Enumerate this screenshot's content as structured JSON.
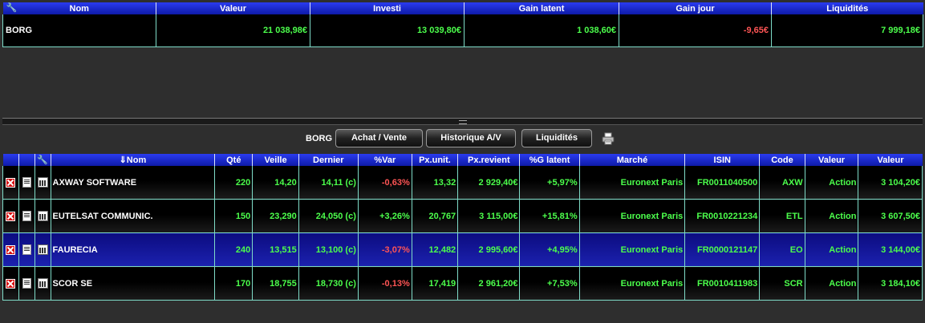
{
  "summary": {
    "headers": [
      "Nom",
      "Valeur",
      "Investi",
      "Gain latent",
      "Gain jour",
      "Liquidités"
    ],
    "row": {
      "nom": "BORG",
      "valeur": "21 038,98€",
      "investi": "13 039,80€",
      "gain_latent": "1 038,60€",
      "gain_jour": "-9,65€",
      "liquidites": "7 999,18€"
    }
  },
  "toolbar": {
    "account": "BORG",
    "achat_vente": "Achat / Vente",
    "historique": "Historique A/V",
    "liquidites": "Liquidités"
  },
  "positions": {
    "headers": [
      "",
      "",
      "",
      "⇓Nom",
      "Qté",
      "Veille",
      "Dernier",
      "%Var",
      "Px.unit.",
      "Px.revient",
      "%G latent",
      "Marché",
      "ISIN",
      "Code",
      "Valeur",
      "Valeur"
    ],
    "rows": [
      {
        "nom": "AXWAY SOFTWARE",
        "qte": "220",
        "veille": "14,20",
        "dernier": "14,11 (c)",
        "var": "-0,63%",
        "pxunit": "13,32",
        "pxrevient": "2 929,40€",
        "glatent": "+5,97%",
        "marche": "Euronext Paris",
        "isin": "FR0011040500",
        "code": "AXW",
        "type": "Action",
        "valeur": "3 104,20€"
      },
      {
        "nom": "EUTELSAT COMMUNIC.",
        "qte": "150",
        "veille": "23,290",
        "dernier": "24,050 (c)",
        "var": "+3,26%",
        "pxunit": "20,767",
        "pxrevient": "3 115,00€",
        "glatent": "+15,81%",
        "marche": "Euronext Paris",
        "isin": "FR0010221234",
        "code": "ETL",
        "type": "Action",
        "valeur": "3 607,50€"
      },
      {
        "nom": "FAURECIA",
        "qte": "240",
        "veille": "13,515",
        "dernier": "13,100 (c)",
        "var": "-3,07%",
        "pxunit": "12,482",
        "pxrevient": "2 995,60€",
        "glatent": "+4,95%",
        "marche": "Euronext Paris",
        "isin": "FR0000121147",
        "code": "EO",
        "type": "Action",
        "valeur": "3 144,00€"
      },
      {
        "nom": "SCOR SE",
        "qte": "170",
        "veille": "18,755",
        "dernier": "18,730 (c)",
        "var": "-0,13%",
        "pxunit": "17,419",
        "pxrevient": "2 961,20€",
        "glatent": "+7,53%",
        "marche": "Euronext Paris",
        "isin": "FR0010411983",
        "code": "SCR",
        "type": "Action",
        "valeur": "3 184,10€"
      }
    ]
  },
  "colors": {
    "positive": "#4cff4c",
    "negative": "#ff5555",
    "header_blue": "#1a2bd8",
    "selected_row": "#1418a0"
  },
  "icons": {
    "delete": "delete-icon",
    "detail": "document-icon",
    "chart": "chart-icon",
    "print": "printer-icon",
    "settings": "wrench-icon"
  }
}
